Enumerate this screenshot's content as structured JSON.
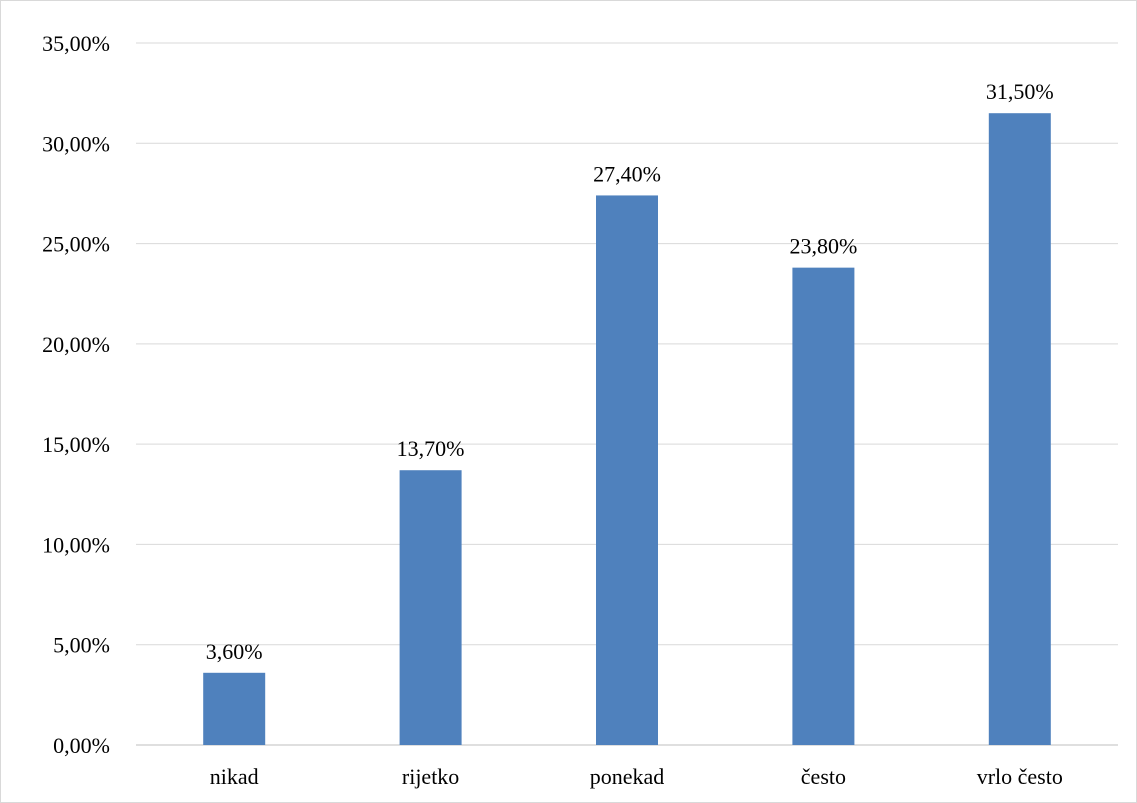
{
  "chart_data": {
    "type": "bar",
    "categories": [
      "nikad",
      "rijetko",
      "ponekad",
      "često",
      "vrlo često"
    ],
    "values": [
      3.6,
      13.7,
      27.4,
      23.8,
      31.5
    ],
    "data_labels": [
      "3,60%",
      "13,70%",
      "27,40%",
      "23,80%",
      "31,50%"
    ],
    "y_ticks": [
      0,
      5,
      10,
      15,
      20,
      25,
      30,
      35
    ],
    "y_tick_labels": [
      "0,00%",
      "5,00%",
      "10,00%",
      "15,00%",
      "20,00%",
      "25,00%",
      "30,00%",
      "35,00%"
    ],
    "ylim": [
      0,
      35
    ],
    "grid": true,
    "legend": "none",
    "colors": {
      "bar": "#4f81bd",
      "grid": "#d9d9d9",
      "axis": "#bfbfbf"
    }
  }
}
